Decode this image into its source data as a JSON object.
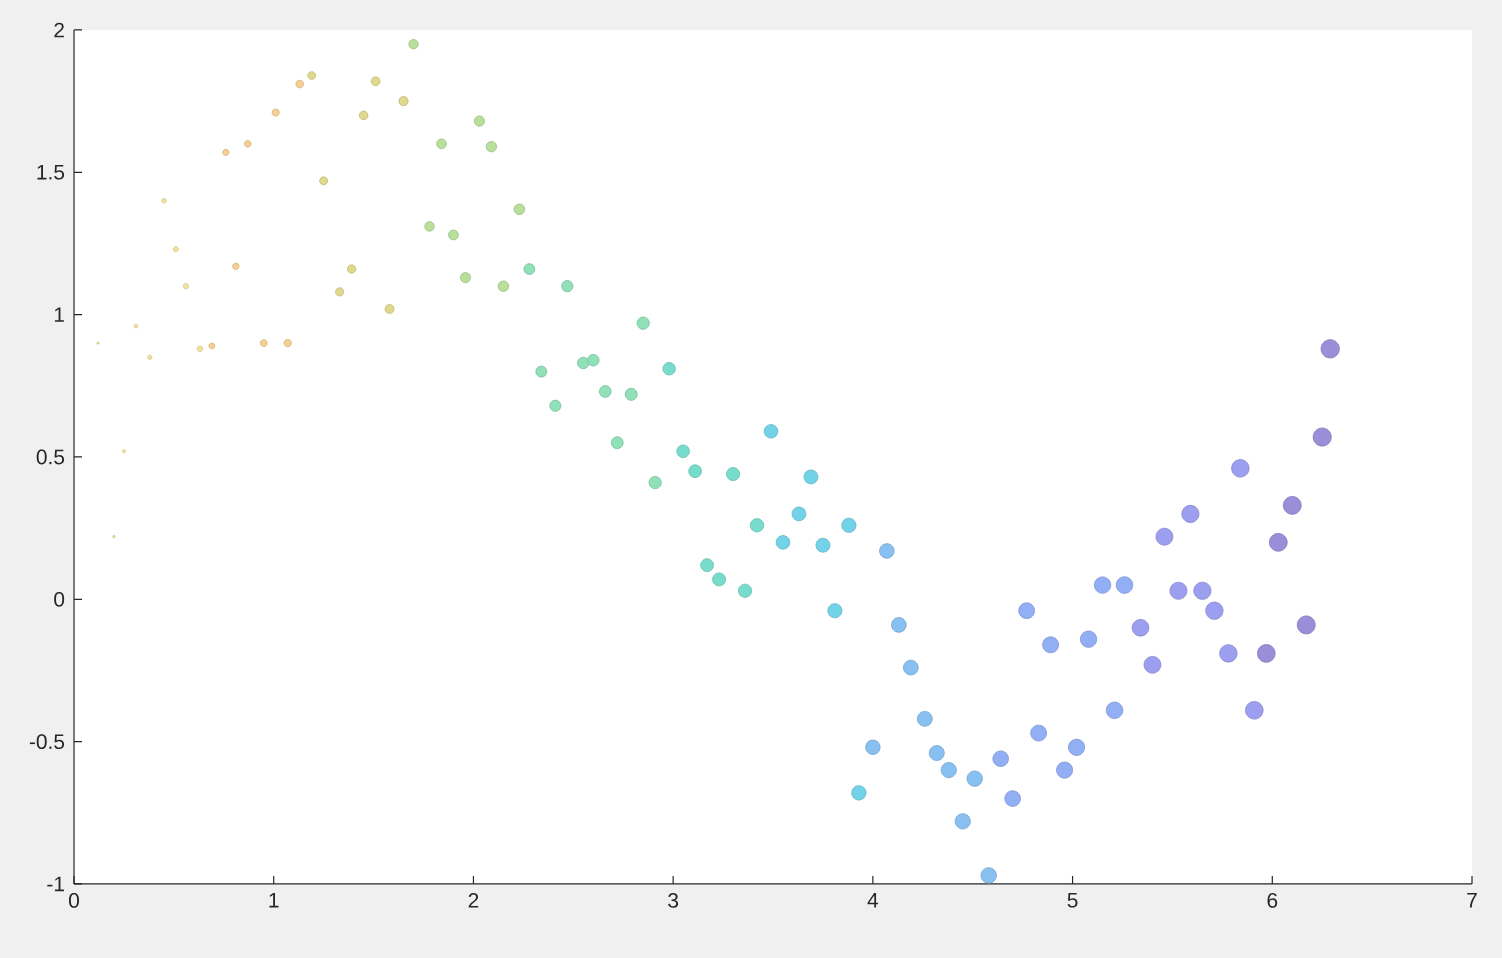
{
  "chart_data": {
    "type": "bubble",
    "x": [
      0.12,
      0.2,
      0.25,
      0.31,
      0.38,
      0.45,
      0.51,
      0.56,
      0.63,
      0.69,
      0.76,
      0.81,
      0.87,
      0.95,
      1.01,
      1.07,
      1.13,
      1.19,
      1.25,
      1.33,
      1.39,
      1.45,
      1.51,
      1.58,
      1.65,
      1.7,
      1.78,
      1.84,
      1.9,
      1.96,
      2.03,
      2.09,
      2.15,
      2.23,
      2.28,
      2.34,
      2.41,
      2.47,
      2.55,
      2.6,
      2.66,
      2.72,
      2.79,
      2.85,
      2.91,
      2.98,
      3.05,
      3.11,
      3.17,
      3.23,
      3.3,
      3.36,
      3.42,
      3.49,
      3.55,
      3.63,
      3.69,
      3.75,
      3.81,
      3.88,
      3.93,
      4.0,
      4.07,
      4.13,
      4.19,
      4.26,
      4.32,
      4.38,
      4.45,
      4.51,
      4.58,
      4.64,
      4.7,
      4.77,
      4.83,
      4.89,
      4.96,
      5.02,
      5.08,
      5.15,
      5.21,
      5.26,
      5.34,
      5.4,
      5.46,
      5.53,
      5.59,
      5.65,
      5.71,
      5.78,
      5.84,
      5.91,
      5.97,
      6.03,
      6.1,
      6.17,
      6.25,
      6.29
    ],
    "values": [
      0.9,
      0.22,
      0.52,
      0.96,
      0.85,
      1.4,
      1.23,
      1.1,
      0.88,
      0.89,
      1.57,
      1.17,
      1.6,
      0.9,
      1.71,
      0.9,
      1.81,
      1.84,
      1.47,
      1.08,
      1.16,
      1.7,
      1.82,
      1.02,
      1.75,
      1.95,
      1.31,
      1.6,
      1.28,
      1.13,
      1.68,
      1.59,
      1.1,
      1.37,
      1.16,
      0.8,
      0.68,
      1.1,
      0.83,
      0.84,
      0.73,
      0.55,
      0.72,
      0.97,
      0.41,
      0.81,
      0.52,
      0.45,
      0.12,
      0.07,
      0.44,
      0.03,
      0.26,
      0.59,
      0.2,
      0.3,
      0.43,
      0.19,
      -0.04,
      0.26,
      -0.68,
      -0.52,
      0.17,
      -0.09,
      -0.24,
      -0.42,
      -0.54,
      -0.6,
      -0.78,
      -0.63,
      -0.97,
      -0.56,
      -0.7,
      -0.04,
      -0.47,
      -0.16,
      -0.6,
      -0.52,
      -0.14,
      0.05,
      -0.39,
      0.05,
      -0.1,
      -0.23,
      0.22,
      0.03,
      0.3,
      0.03,
      -0.04,
      -0.19,
      0.46,
      -0.39,
      -0.19,
      0.2,
      0.33,
      -0.09,
      0.57,
      0.88
    ],
    "sizes": [
      0.01,
      0.02,
      0.03,
      0.04,
      0.05,
      0.06,
      0.07,
      0.08,
      0.09,
      0.1,
      0.11,
      0.12,
      0.13,
      0.14,
      0.15,
      0.16,
      0.17,
      0.18,
      0.19,
      0.2,
      0.21,
      0.22,
      0.23,
      0.24,
      0.25,
      0.26,
      0.27,
      0.28,
      0.29,
      0.3,
      0.31,
      0.32,
      0.33,
      0.34,
      0.35,
      0.36,
      0.37,
      0.38,
      0.39,
      0.4,
      0.41,
      0.42,
      0.43,
      0.44,
      0.45,
      0.46,
      0.47,
      0.48,
      0.49,
      0.5,
      0.51,
      0.52,
      0.53,
      0.54,
      0.55,
      0.56,
      0.57,
      0.58,
      0.59,
      0.6,
      0.61,
      0.62,
      0.63,
      0.64,
      0.65,
      0.66,
      0.67,
      0.68,
      0.69,
      0.7,
      0.71,
      0.72,
      0.73,
      0.74,
      0.75,
      0.76,
      0.77,
      0.78,
      0.79,
      0.8,
      0.81,
      0.82,
      0.83,
      0.84,
      0.85,
      0.86,
      0.87,
      0.88,
      0.89,
      0.9,
      0.91,
      0.92,
      0.93,
      0.94,
      0.95,
      0.96,
      0.98,
      1
    ],
    "colors": [
      "#f3e49a",
      "#f3e49a",
      "#f3e49a",
      "#f3e49a",
      "#f3e49a",
      "#f3e49a",
      "#f3e49a",
      "#f3e49a",
      "#f3e49a",
      "#f5d090",
      "#f5d090",
      "#f5d090",
      "#f5d090",
      "#f5d090",
      "#f5d090",
      "#f5d090",
      "#f5d090",
      "#e0d88a",
      "#e0d88a",
      "#e0d88a",
      "#e0d88a",
      "#e0d88a",
      "#e0d88a",
      "#e0d88a",
      "#e0d88a",
      "#b8e09a",
      "#b8e09a",
      "#b8e09a",
      "#b8e09a",
      "#b8e09a",
      "#b8e09a",
      "#b8e09a",
      "#b8e09a",
      "#b8e09a",
      "#90e0b8",
      "#90e0b8",
      "#90e0b8",
      "#90e0b8",
      "#90e0b8",
      "#90e0b8",
      "#90e0b8",
      "#90e0b8",
      "#90e0b8",
      "#90e0b8",
      "#90e0b8",
      "#78dccc",
      "#78dccc",
      "#78dccc",
      "#78dccc",
      "#78dccc",
      "#78dccc",
      "#78dccc",
      "#78dccc",
      "#72d2e8",
      "#72d2e8",
      "#72d2e8",
      "#72d2e8",
      "#72d2e8",
      "#72d2e8",
      "#72d2e8",
      "#72d2e8",
      "#88c0f2",
      "#88c0f2",
      "#88c0f2",
      "#88c0f2",
      "#88c0f2",
      "#88c0f2",
      "#88c0f2",
      "#88c0f2",
      "#88c0f2",
      "#88c0f2",
      "#92aef5",
      "#92aef5",
      "#92aef5",
      "#92aef5",
      "#92aef5",
      "#92aef5",
      "#92aef5",
      "#92aef5",
      "#92aef5",
      "#92aef5",
      "#92aef5",
      "#9c9ef0",
      "#9c9ef0",
      "#9c9ef0",
      "#9c9ef0",
      "#9c9ef0",
      "#9c9ef0",
      "#9c9ef0",
      "#9c9ef0",
      "#9c9ef0",
      "#9c9ef0",
      "#9a8ed8",
      "#9a8ed8",
      "#9a8ed8",
      "#9a8ed8",
      "#9a8ed8",
      "#9a8ed8"
    ],
    "xlim": [
      0,
      7
    ],
    "ylim": [
      -1,
      2
    ],
    "xticks": [
      0,
      1,
      2,
      3,
      4,
      5,
      6,
      7
    ],
    "yticks": [
      -1,
      -0.5,
      0,
      0.5,
      1,
      1.5,
      2
    ]
  }
}
